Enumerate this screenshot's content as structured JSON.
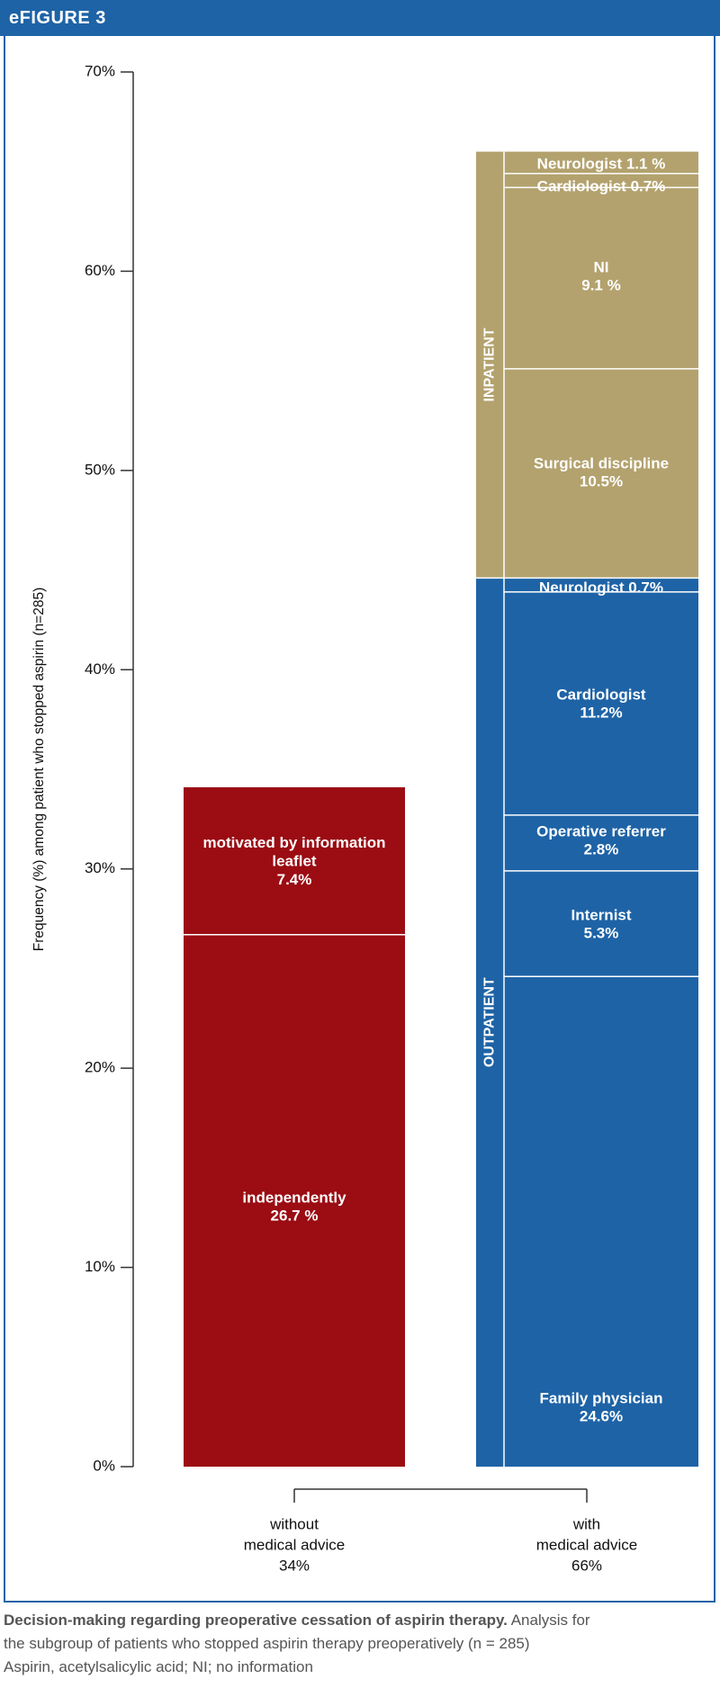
{
  "header": {
    "title": "eFIGURE 3"
  },
  "chart_data": {
    "type": "bar",
    "stacked": true,
    "title": "",
    "ylabel": "Frequency (%) among patient who stopped aspirin (n=285)",
    "ylim": [
      0,
      70
    ],
    "yticks": [
      "0%",
      "10%",
      "20%",
      "30%",
      "40%",
      "50%",
      "60%",
      "70%"
    ],
    "ytick_values": [
      0,
      10,
      20,
      30,
      40,
      50,
      60,
      70
    ],
    "categories": [
      {
        "line1": "without",
        "line2": "medical advice",
        "line3": "34%"
      },
      {
        "line1": "with",
        "line2": "medical advice",
        "line3": "66%"
      }
    ],
    "bars": [
      {
        "category_index": 0,
        "segments": [
          {
            "name": "independently",
            "value": 26.7,
            "value_label": "26.7  %",
            "color": "#9b0c13"
          },
          {
            "name": "motivated by information leaflet",
            "value": 7.4,
            "value_label": "7.4%",
            "color": "#9b0c13"
          }
        ]
      },
      {
        "category_index": 1,
        "groups": [
          {
            "name": "OUTPATIENT",
            "start": 0,
            "end": 44.6,
            "color": "#1e63a6"
          },
          {
            "name": "INPATIENT",
            "start": 44.6,
            "end": 66,
            "color": "#b3a26e"
          }
        ],
        "segments": [
          {
            "name": "Family physician",
            "value": 24.6,
            "value_label": "24.6%",
            "color": "#1e63a6"
          },
          {
            "name": "Internist",
            "value": 5.3,
            "value_label": "5.3%",
            "color": "#1e63a6"
          },
          {
            "name": "Operative referrer",
            "value": 2.8,
            "value_label": "2.8%",
            "color": "#1e63a6"
          },
          {
            "name": "Cardiologist",
            "value": 11.2,
            "value_label": "11.2%",
            "color": "#1e63a6"
          },
          {
            "name": "Neurologist 0.7%",
            "value": 0.7,
            "value_label": "",
            "color": "#1e63a6"
          },
          {
            "name": "Surgical discipline",
            "value": 10.5,
            "value_label": "10.5%",
            "color": "#b3a26e"
          },
          {
            "name": "NI",
            "value": 9.1,
            "value_label": "9.1 %",
            "color": "#b3a26e"
          },
          {
            "name": "Cardiologist 0.7%",
            "value": 0.7,
            "value_label": "",
            "color": "#b3a26e"
          },
          {
            "name": "Neurologist 1.1 %",
            "value": 1.1,
            "value_label": "",
            "color": "#b3a26e"
          }
        ]
      }
    ]
  },
  "caption": {
    "bold": "Decision-making regarding preoperative cessation of aspirin therapy.",
    "line1_rest": " Analysis for",
    "line2": "the subgroup of patients who stopped aspirin therapy preoperatively (n = 285)",
    "line3": "Aspirin, acetylsalicylic acid; NI; no information"
  }
}
